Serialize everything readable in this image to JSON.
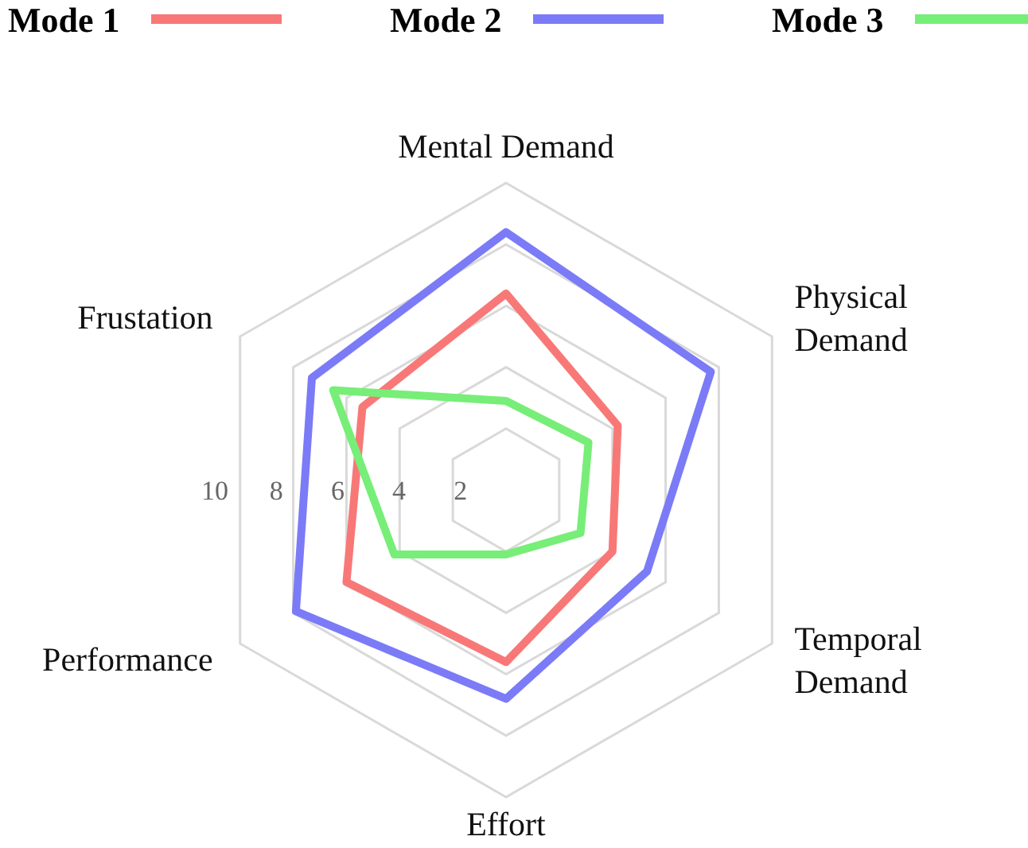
{
  "chart_data": {
    "type": "radar",
    "categories": [
      "Mental Demand",
      "Physical Demand",
      "Temporal Demand",
      "Effort",
      "Performance",
      "Frustation"
    ],
    "series": [
      {
        "name": "Mode 1",
        "color": "#f87878",
        "values": [
          6.4,
          4.2,
          4.0,
          5.6,
          6.0,
          5.4
        ]
      },
      {
        "name": "Mode 2",
        "color": "#7b7bf7",
        "values": [
          8.4,
          7.7,
          5.3,
          6.8,
          7.9,
          7.3
        ]
      },
      {
        "name": "Mode 3",
        "color": "#77ee77",
        "values": [
          2.9,
          3.1,
          2.8,
          2.1,
          4.2,
          6.5
        ]
      }
    ],
    "ylim": [
      0,
      10
    ],
    "yticks": [
      2,
      4,
      6,
      8,
      10
    ],
    "grid": true,
    "legend": "top"
  }
}
